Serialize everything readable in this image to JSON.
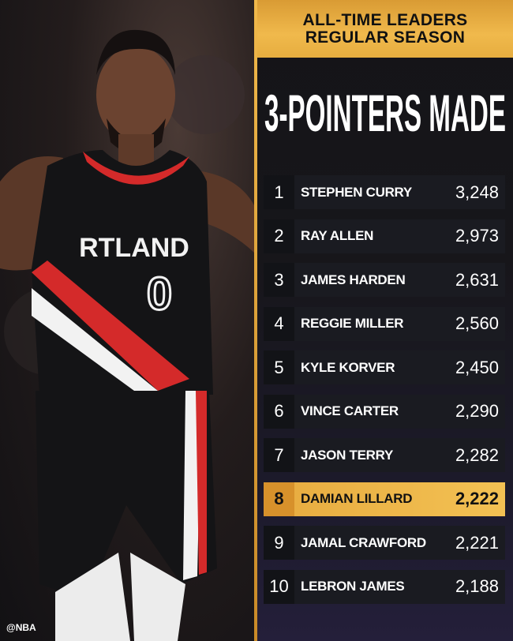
{
  "header": {
    "line1": "ALL-TIME LEADERS",
    "line2": "REGULAR SEASON"
  },
  "title": "3-POINTERS MADE",
  "leaders": [
    {
      "rank": "1",
      "name": "STEPHEN CURRY",
      "value": "3,248"
    },
    {
      "rank": "2",
      "name": "RAY ALLEN",
      "value": "2,973"
    },
    {
      "rank": "3",
      "name": "JAMES HARDEN",
      "value": "2,631"
    },
    {
      "rank": "4",
      "name": "REGGIE MILLER",
      "value": "2,560"
    },
    {
      "rank": "5",
      "name": "KYLE KORVER",
      "value": "2,450"
    },
    {
      "rank": "6",
      "name": "VINCE CARTER",
      "value": "2,290"
    },
    {
      "rank": "7",
      "name": "JASON TERRY",
      "value": "2,282"
    },
    {
      "rank": "8",
      "name": "DAMIAN LILLARD",
      "value": "2,222",
      "highlighted": true
    },
    {
      "rank": "9",
      "name": "JAMAL CRAWFORD",
      "value": "2,221"
    },
    {
      "rank": "10",
      "name": "LEBRON JAMES",
      "value": "2,188"
    }
  ],
  "photo": {
    "jersey_text": "RTLAND",
    "jersey_number": "0"
  },
  "watermark": "@NBA",
  "colors": {
    "gold": "#f0b94c",
    "highlight_rank": "#d7912b",
    "row_bg": "#1a1b21",
    "jersey_red": "#d42a2a"
  }
}
